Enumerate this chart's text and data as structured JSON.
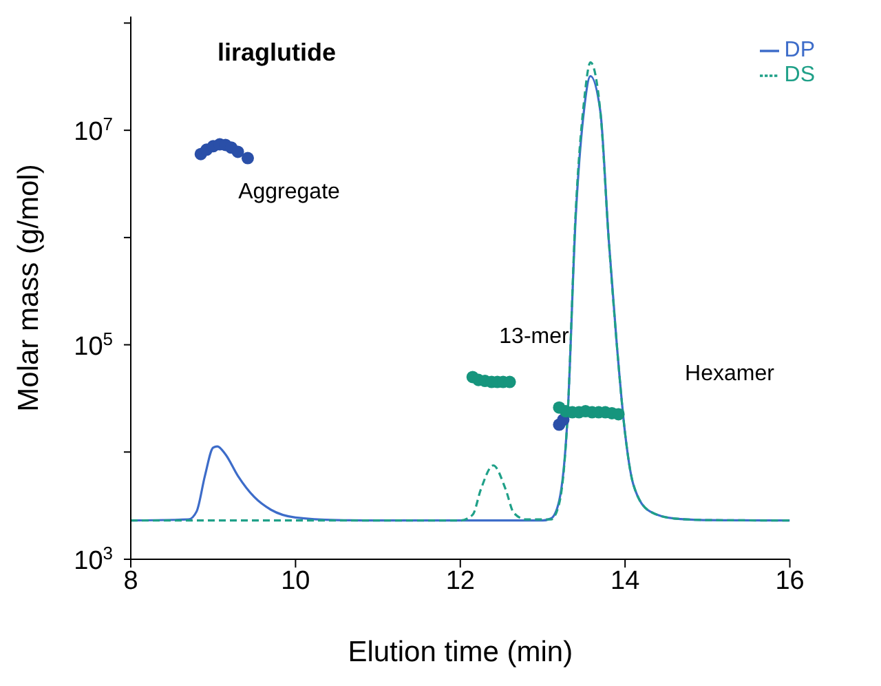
{
  "chart_data": {
    "type": "line",
    "title": "liraglutide",
    "xlabel": "Elution time (min)",
    "ylabel": "Molar mass (g/mol)",
    "log": "y",
    "xlim": [
      8,
      16
    ],
    "xticks": [
      8,
      10,
      12,
      14,
      16
    ],
    "ylim": [
      1000,
      115000000
    ],
    "yticks": [
      {
        "value": 1000,
        "label": "10$^{3}$"
      },
      {
        "value": 10000,
        "label": null
      },
      {
        "value": 100000,
        "label": "10$^{5}$"
      },
      {
        "value": 1000000,
        "label": null
      },
      {
        "value": 10000000,
        "label": "10$^{7}$"
      },
      {
        "value": 100000000,
        "label": null
      }
    ],
    "legend": "top right",
    "grid": false,
    "series": [
      {
        "name": "DP",
        "color": "#3d6cc9",
        "line_style": "solid",
        "marker": "none",
        "x": [
          8,
          8.7,
          8.8,
          8.9,
          9,
          9.05,
          9.15,
          9.3,
          9.5,
          9.7,
          10,
          10.5,
          11,
          13,
          13.1,
          13.2,
          13.3,
          13.4,
          13.5,
          13.58,
          13.7,
          13.8,
          13.9,
          14,
          14.1,
          14.3,
          14.6,
          15,
          16
        ],
        "values": [
          2300,
          2350,
          2800,
          6000,
          11000,
          11300,
          9500,
          6000,
          3800,
          2900,
          2450,
          2320,
          2300,
          2300,
          2400,
          3500,
          20000,
          1500000,
          15000000,
          32000000,
          15000000,
          1000000,
          100000,
          15000,
          5000,
          2800,
          2400,
          2320,
          2300
        ]
      },
      {
        "name": "DS",
        "color": "#1fa088",
        "line_style": "dashed",
        "marker": "none",
        "x": [
          8,
          12,
          12.15,
          12.25,
          12.4,
          12.55,
          12.65,
          12.8,
          13.1,
          13.2,
          13.3,
          13.4,
          13.5,
          13.58,
          13.7,
          13.8,
          13.9,
          14,
          14.1,
          14.3,
          14.6,
          15,
          16
        ],
        "values": [
          2300,
          2300,
          2600,
          4500,
          7500,
          4500,
          2700,
          2350,
          2350,
          3300,
          20000,
          1700000,
          18000000,
          43000000,
          15000000,
          1000000,
          100000,
          15000,
          5000,
          2800,
          2400,
          2320,
          2300
        ]
      },
      {
        "type": "scatter",
        "color": "#2a4fa8",
        "marker": "circle",
        "x": [
          8.85,
          8.92,
          9,
          9.08,
          9.15,
          9.22,
          9.3,
          9.42,
          13.2,
          13.25
        ],
        "values": [
          6000000,
          6600000,
          7100000,
          7400000,
          7300000,
          6900000,
          6300000,
          5500000,
          18000,
          20000
        ]
      },
      {
        "type": "scatter",
        "color": "#16957d",
        "marker": "circle",
        "x": [
          12.15,
          12.22,
          12.3,
          12.38,
          12.45,
          12.52,
          12.6,
          13.2,
          13.28,
          13.36,
          13.44,
          13.52,
          13.6,
          13.68,
          13.76,
          13.84,
          13.92
        ],
        "values": [
          50000,
          47000,
          46000,
          45000,
          45000,
          45000,
          45000,
          26000,
          24000,
          23500,
          23500,
          24000,
          23500,
          23500,
          23500,
          23000,
          22500
        ]
      }
    ],
    "annotations": [
      "Aggregate",
      "13-mer",
      "Hexamer"
    ]
  }
}
